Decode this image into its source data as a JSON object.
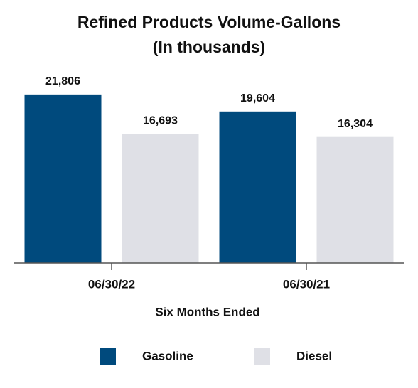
{
  "chart_data": {
    "type": "bar",
    "title": "Refined Products Volume-Gallons",
    "subtitle": "(In thousands)",
    "categories": [
      "06/30/22",
      "06/30/21"
    ],
    "x_label": "Six Months Ended",
    "series": [
      {
        "name": "Gasoline",
        "color": "#004a7d",
        "values": [
          21806,
          19604
        ],
        "value_labels": [
          "21,806",
          "19,604"
        ]
      },
      {
        "name": "Diesel",
        "color": "#dfe0e6",
        "values": [
          16693,
          16304
        ],
        "value_labels": [
          "16,693",
          "16,304"
        ]
      }
    ],
    "ylim": [
      0,
      24000
    ],
    "legend": "bottom"
  }
}
